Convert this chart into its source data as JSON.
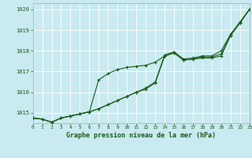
{
  "title": "Graphe pression niveau de la mer (hPa)",
  "bg_color": "#c8eaf0",
  "grid_color": "#ffffff",
  "line_color": "#1a5c1a",
  "xlim": [
    0,
    23
  ],
  "ylim": [
    1014.5,
    1020.3
  ],
  "yticks": [
    1015,
    1016,
    1017,
    1018,
    1019,
    1020
  ],
  "xticks": [
    0,
    1,
    2,
    3,
    4,
    5,
    6,
    7,
    8,
    9,
    10,
    11,
    12,
    13,
    14,
    15,
    16,
    17,
    18,
    19,
    20,
    21,
    22,
    23
  ],
  "line1": [
    [
      0,
      1014.75
    ],
    [
      1,
      1014.7
    ],
    [
      2,
      1014.55
    ],
    [
      3,
      1014.75
    ],
    [
      4,
      1014.85
    ],
    [
      5,
      1014.95
    ],
    [
      6,
      1015.05
    ],
    [
      7,
      1015.2
    ],
    [
      8,
      1015.4
    ],
    [
      9,
      1015.6
    ],
    [
      10,
      1015.8
    ],
    [
      11,
      1016.0
    ],
    [
      12,
      1016.2
    ],
    [
      13,
      1016.5
    ],
    [
      14,
      1017.8
    ],
    [
      15,
      1017.95
    ],
    [
      16,
      1017.6
    ],
    [
      17,
      1017.65
    ],
    [
      18,
      1017.75
    ],
    [
      19,
      1017.75
    ],
    [
      20,
      1018.0
    ],
    [
      21,
      1018.8
    ],
    [
      22,
      1019.4
    ],
    [
      23,
      1020.0
    ]
  ],
  "line2": [
    [
      0,
      1014.75
    ],
    [
      1,
      1014.7
    ],
    [
      2,
      1014.55
    ],
    [
      3,
      1014.75
    ],
    [
      4,
      1014.85
    ],
    [
      5,
      1014.95
    ],
    [
      6,
      1015.05
    ],
    [
      7,
      1016.6
    ],
    [
      8,
      1016.9
    ],
    [
      9,
      1017.1
    ],
    [
      10,
      1017.2
    ],
    [
      11,
      1017.25
    ],
    [
      12,
      1017.3
    ],
    [
      13,
      1017.45
    ],
    [
      14,
      1017.75
    ],
    [
      15,
      1017.9
    ],
    [
      16,
      1017.55
    ],
    [
      17,
      1017.6
    ],
    [
      18,
      1017.7
    ],
    [
      19,
      1017.7
    ],
    [
      20,
      1017.85
    ],
    [
      21,
      1018.75
    ],
    [
      22,
      1019.35
    ],
    [
      23,
      1020.0
    ]
  ],
  "line3": [
    [
      0,
      1014.75
    ],
    [
      1,
      1014.7
    ],
    [
      2,
      1014.55
    ],
    [
      3,
      1014.75
    ],
    [
      4,
      1014.85
    ],
    [
      5,
      1014.95
    ],
    [
      6,
      1015.05
    ],
    [
      7,
      1015.2
    ],
    [
      8,
      1015.4
    ],
    [
      9,
      1015.6
    ],
    [
      10,
      1015.8
    ],
    [
      11,
      1016.0
    ],
    [
      12,
      1016.15
    ],
    [
      13,
      1016.45
    ],
    [
      14,
      1017.75
    ],
    [
      15,
      1017.9
    ],
    [
      16,
      1017.55
    ],
    [
      17,
      1017.6
    ],
    [
      18,
      1017.65
    ],
    [
      19,
      1017.65
    ],
    [
      20,
      1017.75
    ],
    [
      21,
      1018.75
    ],
    [
      22,
      1019.35
    ],
    [
      23,
      1020.0
    ]
  ]
}
